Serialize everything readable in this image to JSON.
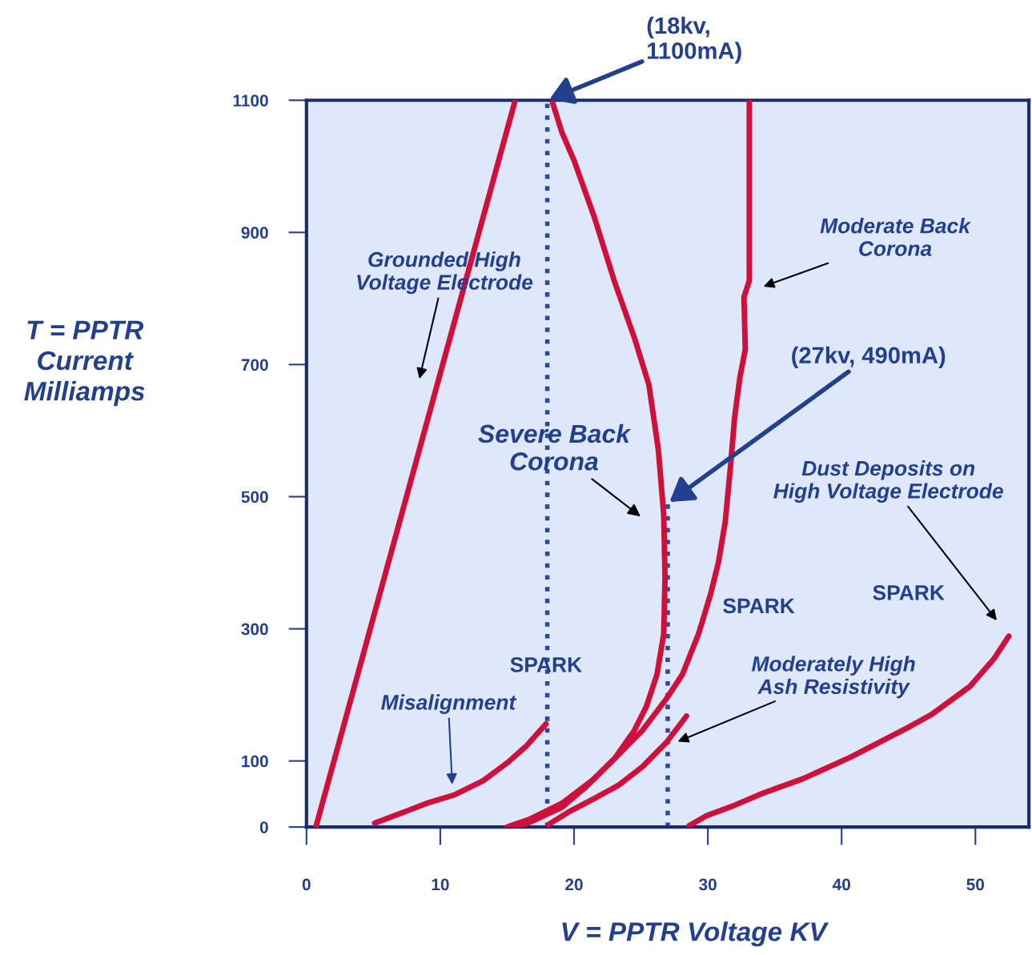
{
  "chart_data": {
    "type": "line",
    "xlabel": "V = PPTR Voltage KV",
    "ylabel": "T = PPTR\nCurrent\nMilliamps",
    "xlim": [
      0,
      54
    ],
    "ylim": [
      0,
      1100
    ],
    "xticks": [
      0,
      10,
      20,
      30,
      40,
      50
    ],
    "yticks": [
      0,
      100,
      300,
      500,
      700,
      900,
      1100
    ],
    "grid": false,
    "legend": false,
    "marker": "none",
    "line_style": "solid",
    "series": [
      {
        "color": "#d0103a",
        "x": [
          0.7,
          15.6
        ],
        "values": [
          0,
          1100
        ]
      },
      {
        "color": "#d0103a",
        "x": [
          5.1,
          7.2,
          9.0,
          11.1,
          13.2,
          15.0,
          16.4,
          17.9
        ],
        "values": [
          6,
          22,
          36,
          49,
          70,
          97,
          122,
          156
        ]
      },
      {
        "color": "#d0103a",
        "x": [
          18.4,
          19.1,
          20.0,
          21.5,
          23.0,
          24.5,
          25.6,
          26.3,
          26.7,
          26.8,
          26.7,
          26.2,
          25.4,
          24.5,
          23.0,
          20.9,
          19.1,
          17.0,
          15.8
        ],
        "values": [
          1096,
          1051,
          1009,
          924,
          827,
          741,
          669,
          571,
          474,
          377,
          292,
          231,
          182,
          146,
          103,
          61,
          30,
          10,
          0
        ]
      },
      {
        "color": "#d0103a",
        "x": [
          33.1,
          33.1,
          32.7,
          32.8,
          32.4,
          32.0,
          31.7,
          31.3,
          30.8,
          30.2,
          29.3,
          28.1,
          26.9,
          25.1,
          23.3,
          21.5,
          19.1,
          16.7,
          15.0
        ],
        "values": [
          1100,
          827,
          802,
          723,
          681,
          620,
          547,
          462,
          401,
          352,
          292,
          231,
          194,
          146,
          109,
          73,
          36,
          12,
          0
        ]
      },
      {
        "color": "#d0103a",
        "x": [
          18.1,
          19.7,
          21.5,
          23.3,
          25.1,
          26.9,
          28.4
        ],
        "values": [
          4,
          24,
          43,
          63,
          91,
          128,
          168
        ]
      },
      {
        "color": "#d0103a",
        "x": [
          28.6,
          29.9,
          32.0,
          34.1,
          37.1,
          40.7,
          44.9,
          46.7,
          49.6,
          51.4,
          52.5
        ],
        "values": [
          2,
          17,
          33,
          51,
          73,
          106,
          150,
          170,
          213,
          255,
          289
        ]
      },
      {
        "color": "#2b4a9a",
        "x": [
          18,
          18
        ],
        "values": [
          0,
          1100
        ],
        "line_style": "dotted"
      },
      {
        "color": "#2b4a9a",
        "x": [
          27,
          27
        ],
        "values": [
          0,
          490
        ],
        "line_style": "dotted"
      }
    ],
    "annotations": [
      {
        "text": "(18kv,\n1100mA)",
        "x": 18,
        "y": 1100
      },
      {
        "text": "(27kv, 490mA)",
        "x": 27,
        "y": 490
      },
      "Grounded High\nVoltage Electrode",
      "Severe Back\nCorona",
      "Moderate Back\nCorona",
      "Misalignment",
      "Moderately High\nAsh Resistivity",
      "Dust Deposits on\nHigh Voltage Electrode",
      "SPARK",
      "SPARK",
      "SPARK"
    ]
  }
}
